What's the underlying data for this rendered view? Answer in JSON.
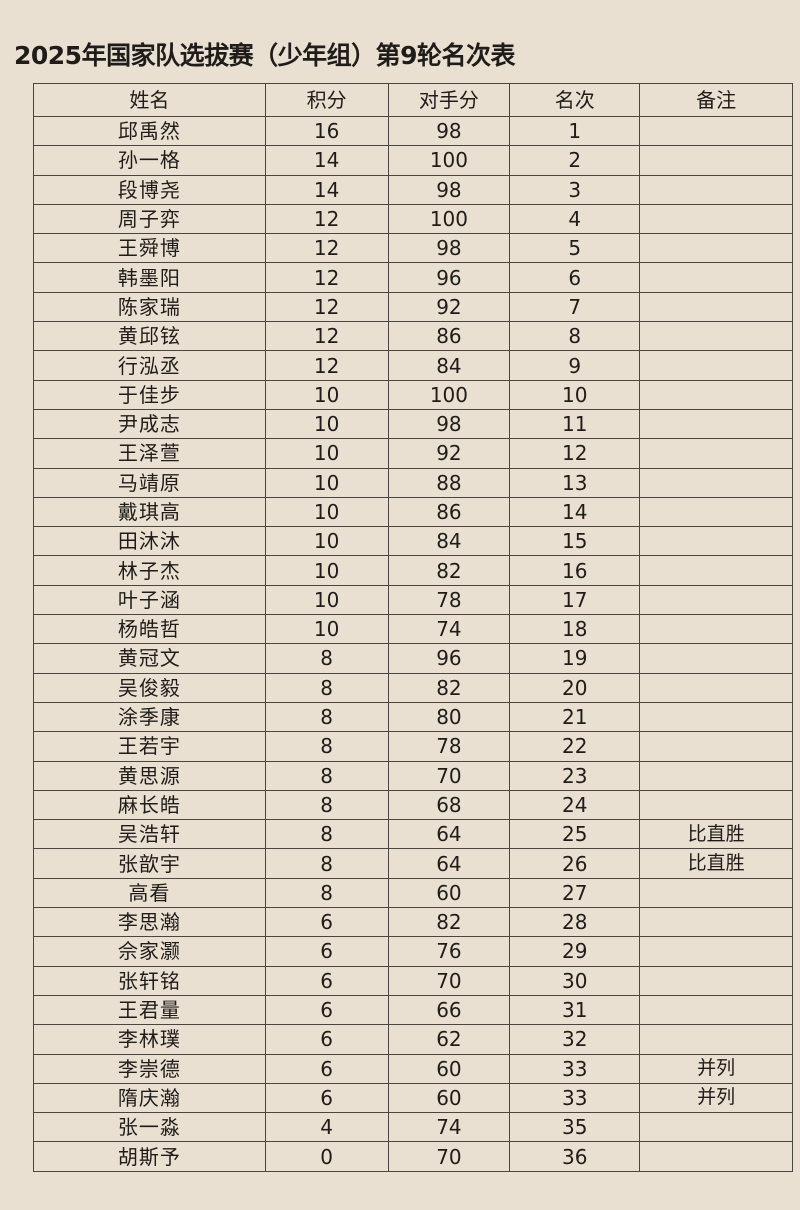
{
  "title": "2025年国家队选拔赛（少年组）第9轮名次表",
  "headers": [
    "姓名",
    "积分",
    "对手分",
    "名次",
    "备注"
  ],
  "rows": [
    [
      "邱禹然",
      "16",
      "98",
      "1",
      ""
    ],
    [
      "孙一格",
      "14",
      "100",
      "2",
      ""
    ],
    [
      "段博尧",
      "14",
      "98",
      "3",
      ""
    ],
    [
      "周子弈",
      "12",
      "100",
      "4",
      ""
    ],
    [
      "王舜博",
      "12",
      "98",
      "5",
      ""
    ],
    [
      "韩墨阳",
      "12",
      "96",
      "6",
      ""
    ],
    [
      "陈家瑞",
      "12",
      "92",
      "7",
      ""
    ],
    [
      "黄邱铉",
      "12",
      "86",
      "8",
      ""
    ],
    [
      "行泓丞",
      "12",
      "84",
      "9",
      ""
    ],
    [
      "于佳步",
      "10",
      "100",
      "10",
      ""
    ],
    [
      "尹成志",
      "10",
      "98",
      "11",
      ""
    ],
    [
      "王泽萱",
      "10",
      "92",
      "12",
      ""
    ],
    [
      "马靖原",
      "10",
      "88",
      "13",
      ""
    ],
    [
      "戴琪高",
      "10",
      "86",
      "14",
      ""
    ],
    [
      "田沐沐",
      "10",
      "84",
      "15",
      ""
    ],
    [
      "林子杰",
      "10",
      "82",
      "16",
      ""
    ],
    [
      "叶子涵",
      "10",
      "78",
      "17",
      ""
    ],
    [
      "杨皓哲",
      "10",
      "74",
      "18",
      ""
    ],
    [
      "黄冠文",
      "8",
      "96",
      "19",
      ""
    ],
    [
      "吴俊毅",
      "8",
      "82",
      "20",
      ""
    ],
    [
      "涂季康",
      "8",
      "80",
      "21",
      ""
    ],
    [
      "王若宇",
      "8",
      "78",
      "22",
      ""
    ],
    [
      "黄思源",
      "8",
      "70",
      "23",
      ""
    ],
    [
      "麻长皓",
      "8",
      "68",
      "24",
      ""
    ],
    [
      "吴浩轩",
      "8",
      "64",
      "25",
      "比直胜"
    ],
    [
      "张歆宇",
      "8",
      "64",
      "26",
      "比直胜"
    ],
    [
      "高看",
      "8",
      "60",
      "27",
      ""
    ],
    [
      "李思瀚",
      "6",
      "82",
      "28",
      ""
    ],
    [
      "佘家灏",
      "6",
      "76",
      "29",
      ""
    ],
    [
      "张轩铭",
      "6",
      "70",
      "30",
      ""
    ],
    [
      "王君量",
      "6",
      "66",
      "31",
      ""
    ],
    [
      "李林璞",
      "6",
      "62",
      "32",
      ""
    ],
    [
      "李崇德",
      "6",
      "60",
      "33",
      "并列"
    ],
    [
      "隋庆瀚",
      "6",
      "60",
      "33",
      "并列"
    ],
    [
      "张一淼",
      "4",
      "74",
      "35",
      ""
    ],
    [
      "胡斯予",
      "0",
      "70",
      "36",
      ""
    ]
  ]
}
